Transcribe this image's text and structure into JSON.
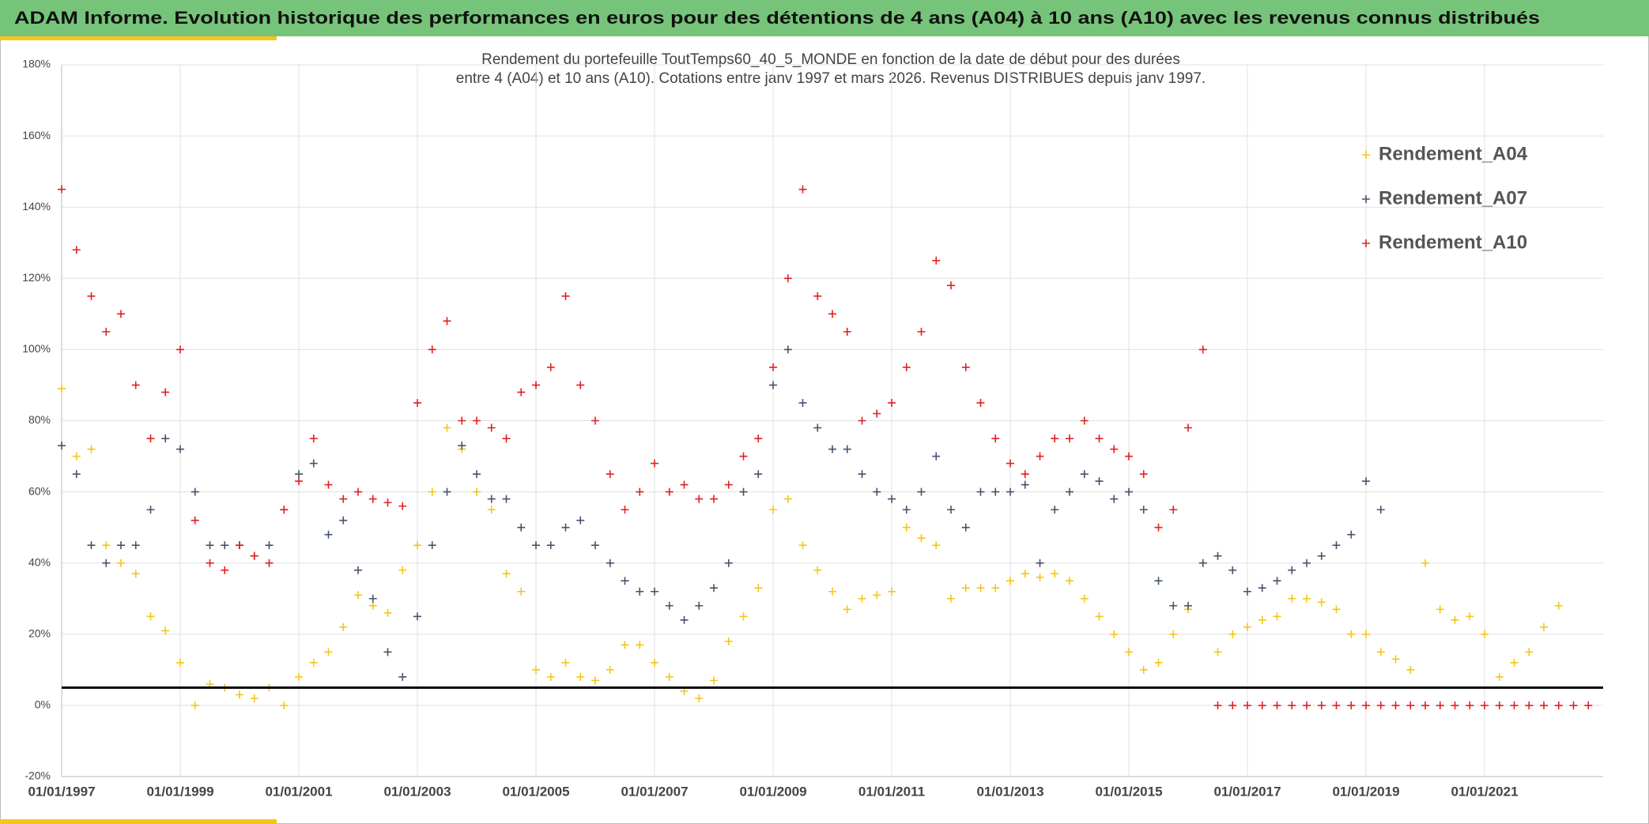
{
  "header": {
    "title": "ADAM Informe. Evolution historique des performances en euros pour des détentions de 4 ans (A04) à 10 ans (A10) avec les revenus connus distribués"
  },
  "chart_data": {
    "type": "scatter",
    "title": [
      "Rendement du portefeuille ToutTemps60_40_5_MONDE  en fonction de la date de début pour des durées",
      "entre 4 (A04) et 10 ans (A10). Cotations entre janv 1997 et mars 2026. Revenus DISTRIBUES depuis janv 1997."
    ],
    "x": [
      "01/01/1997",
      "01/04/1997",
      "01/07/1997",
      "01/10/1997",
      "01/01/1998",
      "01/04/1998",
      "01/07/1998",
      "01/10/1998",
      "01/01/1999",
      "01/04/1999",
      "01/07/1999",
      "01/10/1999",
      "01/01/2000",
      "01/04/2000",
      "01/07/2000",
      "01/10/2000",
      "01/01/2001",
      "01/04/2001",
      "01/07/2001",
      "01/10/2001",
      "01/01/2002",
      "01/04/2002",
      "01/07/2002",
      "01/10/2002",
      "01/01/2003",
      "01/04/2003",
      "01/07/2003",
      "01/10/2003",
      "01/01/2004",
      "01/04/2004",
      "01/07/2004",
      "01/10/2004",
      "01/01/2005",
      "01/04/2005",
      "01/07/2005",
      "01/10/2005",
      "01/01/2006",
      "01/04/2006",
      "01/07/2006",
      "01/10/2006",
      "01/01/2007",
      "01/04/2007",
      "01/07/2007",
      "01/10/2007",
      "01/01/2008",
      "01/04/2008",
      "01/07/2008",
      "01/10/2008",
      "01/01/2009",
      "01/04/2009",
      "01/07/2009",
      "01/10/2009",
      "01/01/2010",
      "01/04/2010",
      "01/07/2010",
      "01/10/2010",
      "01/01/2011",
      "01/04/2011",
      "01/07/2011",
      "01/10/2011",
      "01/01/2012",
      "01/04/2012",
      "01/07/2012",
      "01/10/2012",
      "01/01/2013",
      "01/04/2013",
      "01/07/2013",
      "01/10/2013",
      "01/01/2014",
      "01/04/2014",
      "01/07/2014",
      "01/10/2014",
      "01/01/2015",
      "01/04/2015",
      "01/07/2015",
      "01/10/2015",
      "01/01/2016",
      "01/04/2016",
      "01/07/2016",
      "01/10/2016",
      "01/01/2017",
      "01/04/2017",
      "01/07/2017",
      "01/10/2017",
      "01/01/2018",
      "01/04/2018",
      "01/07/2018",
      "01/10/2018",
      "01/01/2019",
      "01/04/2019",
      "01/07/2019",
      "01/10/2019",
      "01/01/2020",
      "01/04/2020",
      "01/07/2020",
      "01/10/2020",
      "01/01/2021",
      "01/04/2021",
      "01/07/2021",
      "01/10/2021",
      "01/01/2022",
      "01/04/2022",
      "01/07/2022",
      "01/10/2022"
    ],
    "series": [
      {
        "name": "Rendement_A04",
        "color": "#f5c518",
        "values": [
          89,
          70,
          72,
          45,
          40,
          37,
          25,
          21,
          12,
          0,
          6,
          5,
          3,
          2,
          5,
          0,
          8,
          12,
          15,
          22,
          31,
          28,
          26,
          38,
          45,
          60,
          78,
          72,
          60,
          55,
          37,
          32,
          10,
          8,
          12,
          8,
          7,
          10,
          17,
          17,
          12,
          8,
          4,
          2,
          7,
          18,
          25,
          33,
          55,
          58,
          45,
          38,
          32,
          27,
          30,
          31,
          32,
          50,
          47,
          45,
          30,
          33,
          33,
          33,
          35,
          37,
          36,
          37,
          35,
          30,
          25,
          20,
          15,
          10,
          12,
          20,
          27,
          40,
          15,
          20,
          22,
          24,
          25,
          30,
          30,
          29,
          27,
          20,
          20,
          15,
          13,
          10,
          40,
          27,
          24,
          25,
          20,
          8,
          12,
          15,
          22,
          28,
          null,
          null
        ]
      },
      {
        "name": "Rendement_A07",
        "color": "#44546a",
        "values": [
          73,
          65,
          45,
          40,
          45,
          45,
          55,
          75,
          72,
          60,
          45,
          45,
          45,
          42,
          45,
          55,
          65,
          68,
          48,
          52,
          38,
          30,
          15,
          8,
          25,
          45,
          60,
          73,
          65,
          58,
          58,
          50,
          45,
          45,
          50,
          52,
          45,
          40,
          35,
          32,
          32,
          28,
          24,
          28,
          33,
          40,
          60,
          65,
          90,
          100,
          85,
          78,
          72,
          72,
          65,
          60,
          58,
          55,
          60,
          70,
          55,
          50,
          60,
          60,
          60,
          62,
          40,
          55,
          60,
          65,
          63,
          58,
          60,
          55,
          35,
          28,
          28,
          40,
          42,
          38,
          32,
          33,
          35,
          38,
          40,
          42,
          45,
          48,
          63,
          55,
          null,
          null,
          null,
          null,
          null,
          null,
          null,
          null,
          null,
          null,
          null,
          null,
          null,
          null
        ]
      },
      {
        "name": "Rendement_A10",
        "color": "#e02020",
        "values": [
          145,
          128,
          115,
          105,
          110,
          90,
          75,
          88,
          100,
          52,
          40,
          38,
          45,
          42,
          40,
          55,
          63,
          75,
          62,
          58,
          60,
          58,
          57,
          56,
          85,
          100,
          108,
          80,
          80,
          78,
          75,
          88,
          90,
          95,
          115,
          90,
          80,
          65,
          55,
          60,
          68,
          60,
          62,
          58,
          58,
          62,
          70,
          75,
          95,
          120,
          145,
          115,
          110,
          105,
          80,
          82,
          85,
          95,
          105,
          125,
          118,
          95,
          85,
          75,
          68,
          65,
          70,
          75,
          75,
          80,
          75,
          72,
          70,
          65,
          50,
          55,
          78,
          100,
          0,
          0,
          0,
          0,
          0,
          0,
          0,
          0,
          0,
          0,
          0,
          0,
          0,
          0,
          0,
          0,
          0,
          0,
          0,
          0,
          0,
          0,
          0,
          0,
          0,
          0
        ]
      }
    ],
    "xlim": [
      "01/01/1997",
      "01/01/2023"
    ],
    "xticks": [
      "01/01/1997",
      "01/01/1999",
      "01/01/2001",
      "01/01/2003",
      "01/01/2005",
      "01/01/2007",
      "01/01/2009",
      "01/01/2011",
      "01/01/2013",
      "01/01/2015",
      "01/01/2017",
      "01/01/2019",
      "01/01/2021"
    ],
    "ylim": [
      -20,
      180
    ],
    "yticks": [
      {
        "value": -20,
        "label": "-20%"
      },
      {
        "value": 0,
        "label": "0%"
      },
      {
        "value": 20,
        "label": "20%"
      },
      {
        "value": 40,
        "label": "40%"
      },
      {
        "value": 60,
        "label": "60%"
      },
      {
        "value": 80,
        "label": "80%"
      },
      {
        "value": 100,
        "label": "100%"
      },
      {
        "value": 120,
        "label": "120%"
      },
      {
        "value": 140,
        "label": "140%"
      },
      {
        "value": 160,
        "label": "160%"
      },
      {
        "value": 180,
        "label": "180%"
      }
    ],
    "reference_line": {
      "value": 5,
      "color": "#000000"
    },
    "grid": true,
    "legend": "upper right"
  }
}
